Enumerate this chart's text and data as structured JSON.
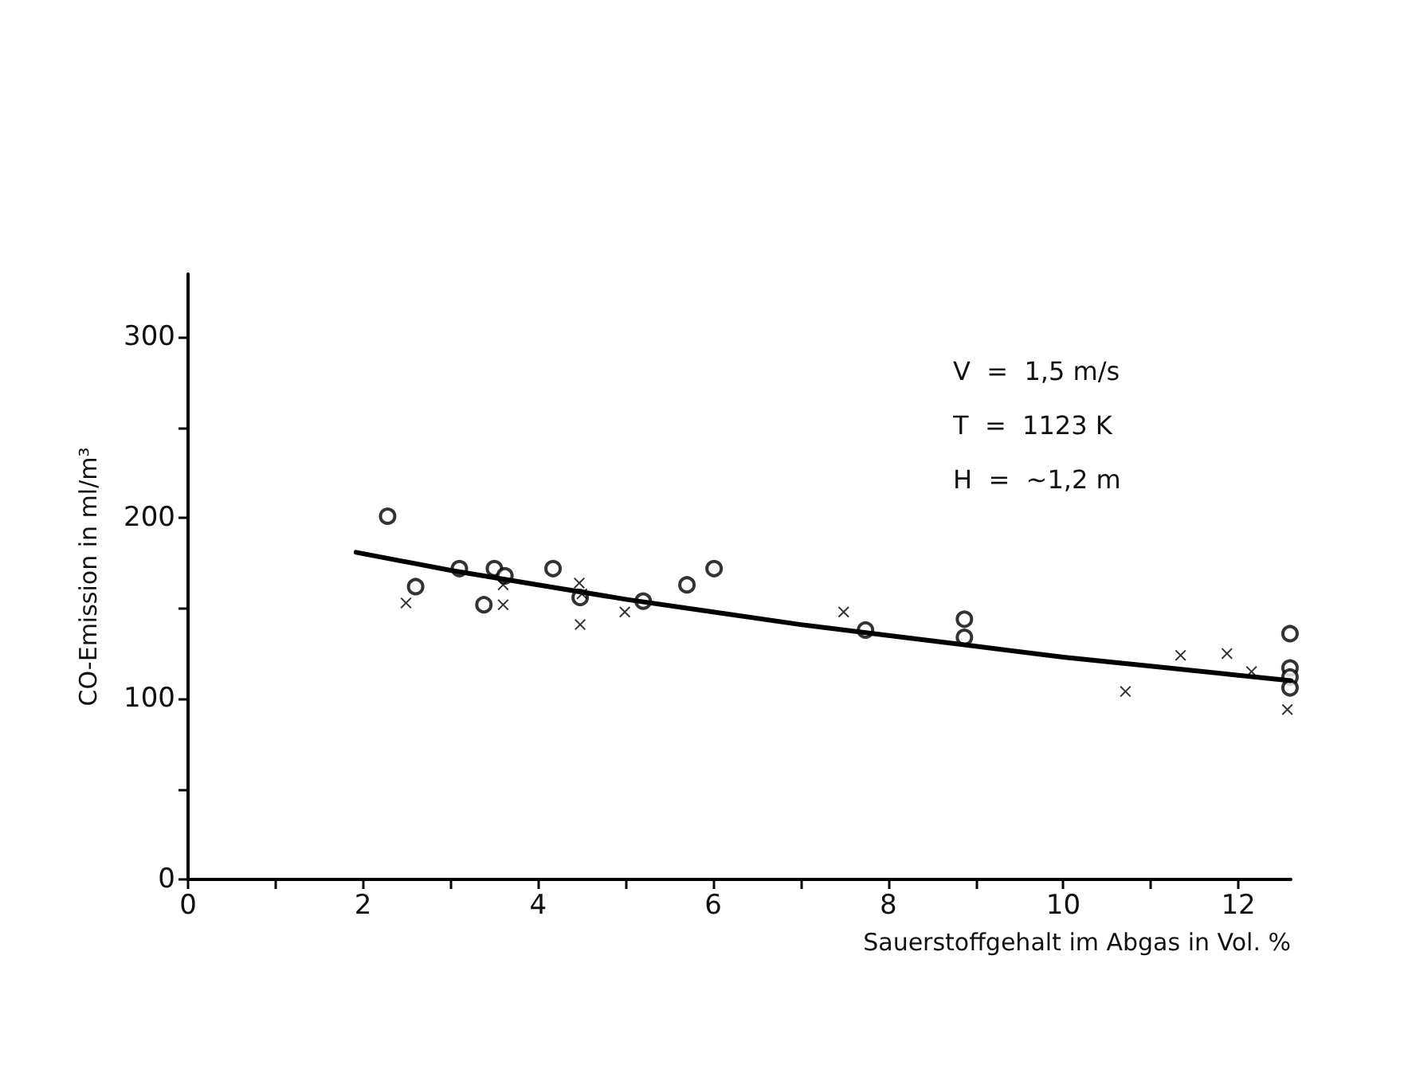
{
  "chart_data": {
    "type": "scatter",
    "xlabel": "Sauerstoffgehalt im Abgas in Vol. %",
    "ylabel": "CO-Emission in ml/m³",
    "annotations": [
      "V  =  1,5 m/s",
      "T  =  1123 K",
      "H  =  ~1,2 m"
    ],
    "xlim": [
      0,
      12.6
    ],
    "ylim": [
      0,
      335
    ],
    "xticks": [
      0,
      {
        "value": 1,
        "label": null
      },
      2,
      {
        "value": 3,
        "label": null
      },
      4,
      {
        "value": 5,
        "label": null
      },
      6,
      {
        "value": 7,
        "label": null
      },
      8,
      {
        "value": 9,
        "label": null
      },
      10,
      {
        "value": 11,
        "label": null
      },
      12
    ],
    "yticks": [
      0,
      {
        "value": 50,
        "label": null
      },
      100,
      {
        "value": 150,
        "label": null
      },
      200,
      {
        "value": 250,
        "label": null
      },
      300
    ],
    "grid": false,
    "series": [
      {
        "marker": "circle",
        "color": "#000000",
        "x": [
          2.28,
          2.6,
          3.1,
          3.5,
          3.62,
          3.38,
          4.17,
          4.48,
          5.2,
          5.7,
          6.01,
          7.74,
          8.87,
          8.87,
          12.59,
          12.59,
          12.59,
          12.59
        ],
        "values": [
          201,
          162,
          172,
          172,
          168,
          152,
          172,
          156,
          154,
          163,
          172,
          138,
          144,
          134,
          136,
          117,
          112,
          106
        ]
      },
      {
        "marker": "cross",
        "color": "#000000",
        "x": [
          2.49,
          3.6,
          3.6,
          4.47,
          4.5,
          4.48,
          4.99,
          7.49,
          10.71,
          11.34,
          11.87,
          12.15,
          12.56
        ],
        "values": [
          153,
          152,
          163,
          164,
          158,
          141,
          148,
          148,
          104,
          124,
          125,
          115,
          94
        ]
      },
      {
        "type": "line",
        "marker": "none",
        "line_style": "solid",
        "color": "#000000",
        "x": [
          1.92,
          3,
          4,
          5,
          6,
          7,
          8,
          9,
          10,
          11,
          12,
          12.6
        ],
        "values": [
          181,
          171,
          163,
          155,
          148,
          141,
          135,
          129,
          123,
          118,
          113,
          110
        ]
      }
    ]
  }
}
